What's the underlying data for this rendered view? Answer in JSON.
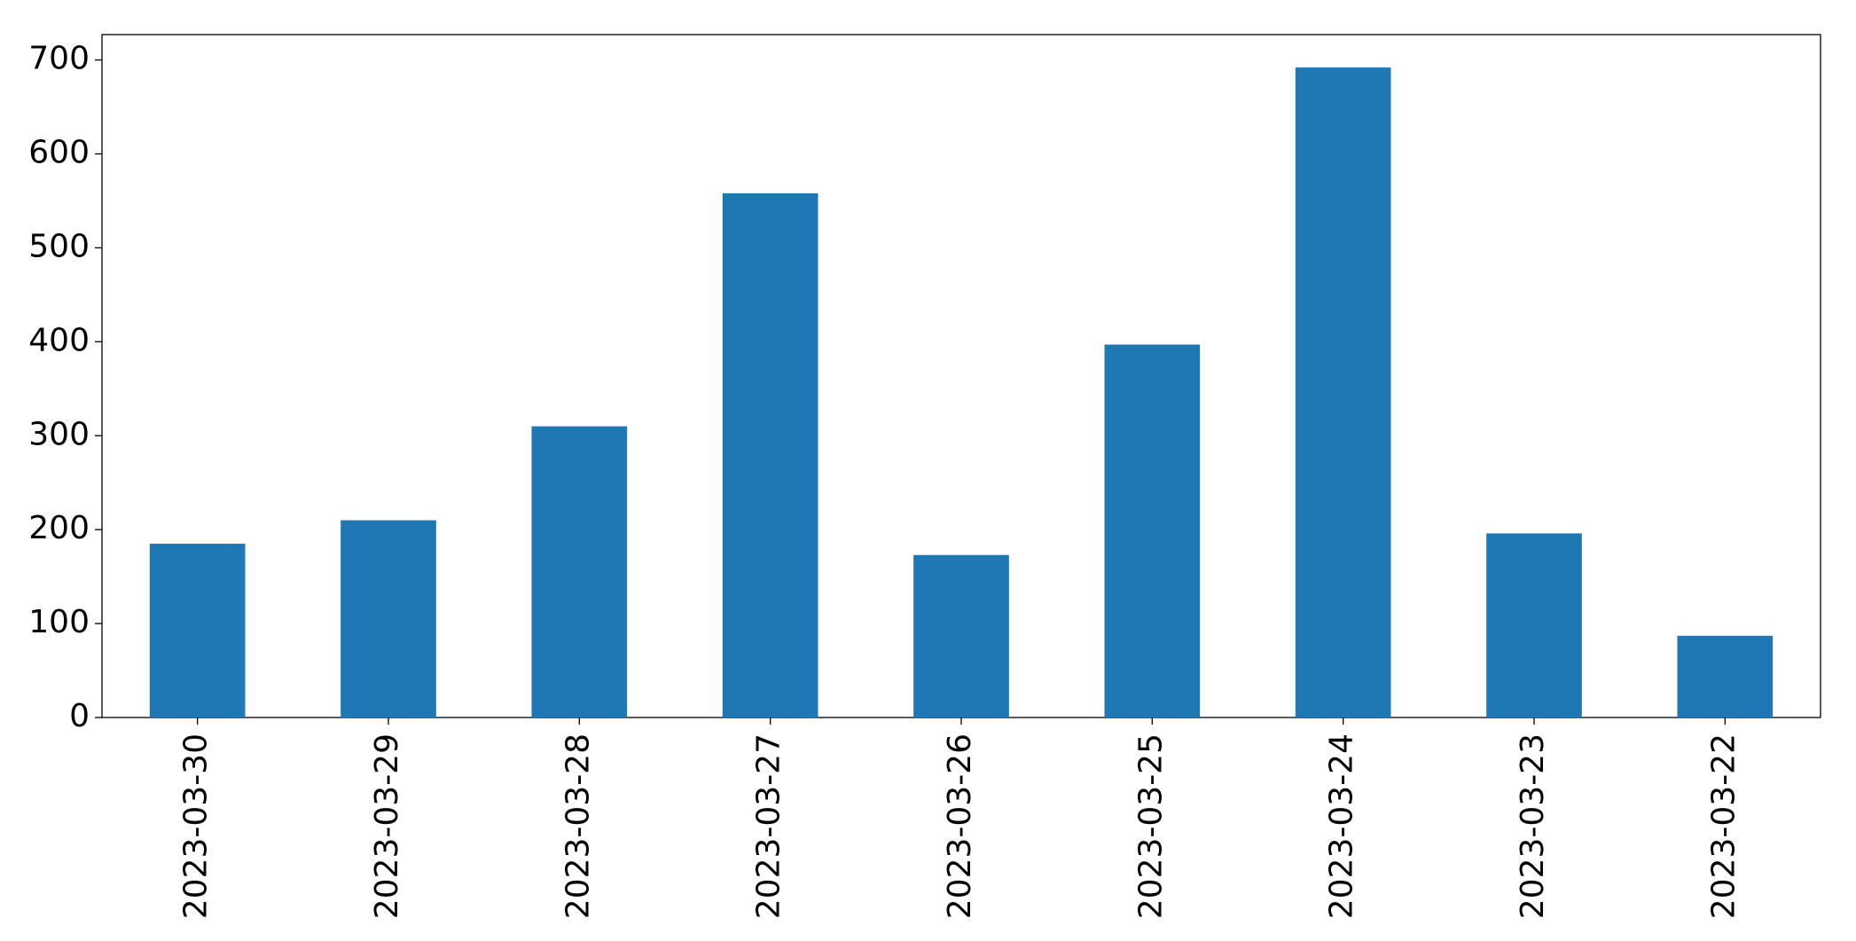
{
  "chart_data": {
    "type": "bar",
    "categories": [
      "2023-03-30",
      "2023-03-29",
      "2023-03-28",
      "2023-03-27",
      "2023-03-26",
      "2023-03-25",
      "2023-03-24",
      "2023-03-23",
      "2023-03-22"
    ],
    "values": [
      185,
      210,
      310,
      558,
      173,
      397,
      692,
      196,
      87
    ],
    "color": "#1f77b4",
    "ylim": [
      0,
      727
    ],
    "yticks": [
      0,
      100,
      200,
      300,
      400,
      500,
      600,
      700
    ],
    "grid": false
  }
}
